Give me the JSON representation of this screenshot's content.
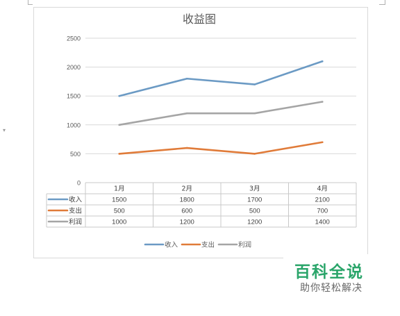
{
  "chart_data": {
    "type": "line",
    "title": "收益图",
    "categories": [
      "1月",
      "2月",
      "3月",
      "4月"
    ],
    "series": [
      {
        "name": "收入",
        "color": "#6b9ac4",
        "values": [
          1500,
          1800,
          1700,
          2100
        ]
      },
      {
        "name": "支出",
        "color": "#e07b39",
        "values": [
          500,
          600,
          500,
          700
        ]
      },
      {
        "name": "利润",
        "color": "#a5a5a5",
        "values": [
          1000,
          1200,
          1200,
          1400
        ]
      }
    ],
    "ylim": [
      0,
      2500
    ],
    "yticks": [
      "0",
      "500",
      "1000",
      "1500",
      "2000",
      "2500"
    ],
    "grid": true,
    "legend": "bottom",
    "data_table": true
  },
  "watermark": {
    "title": "百科全说",
    "subtitle": "助你轻松解决",
    "color": "#2aa56a"
  }
}
